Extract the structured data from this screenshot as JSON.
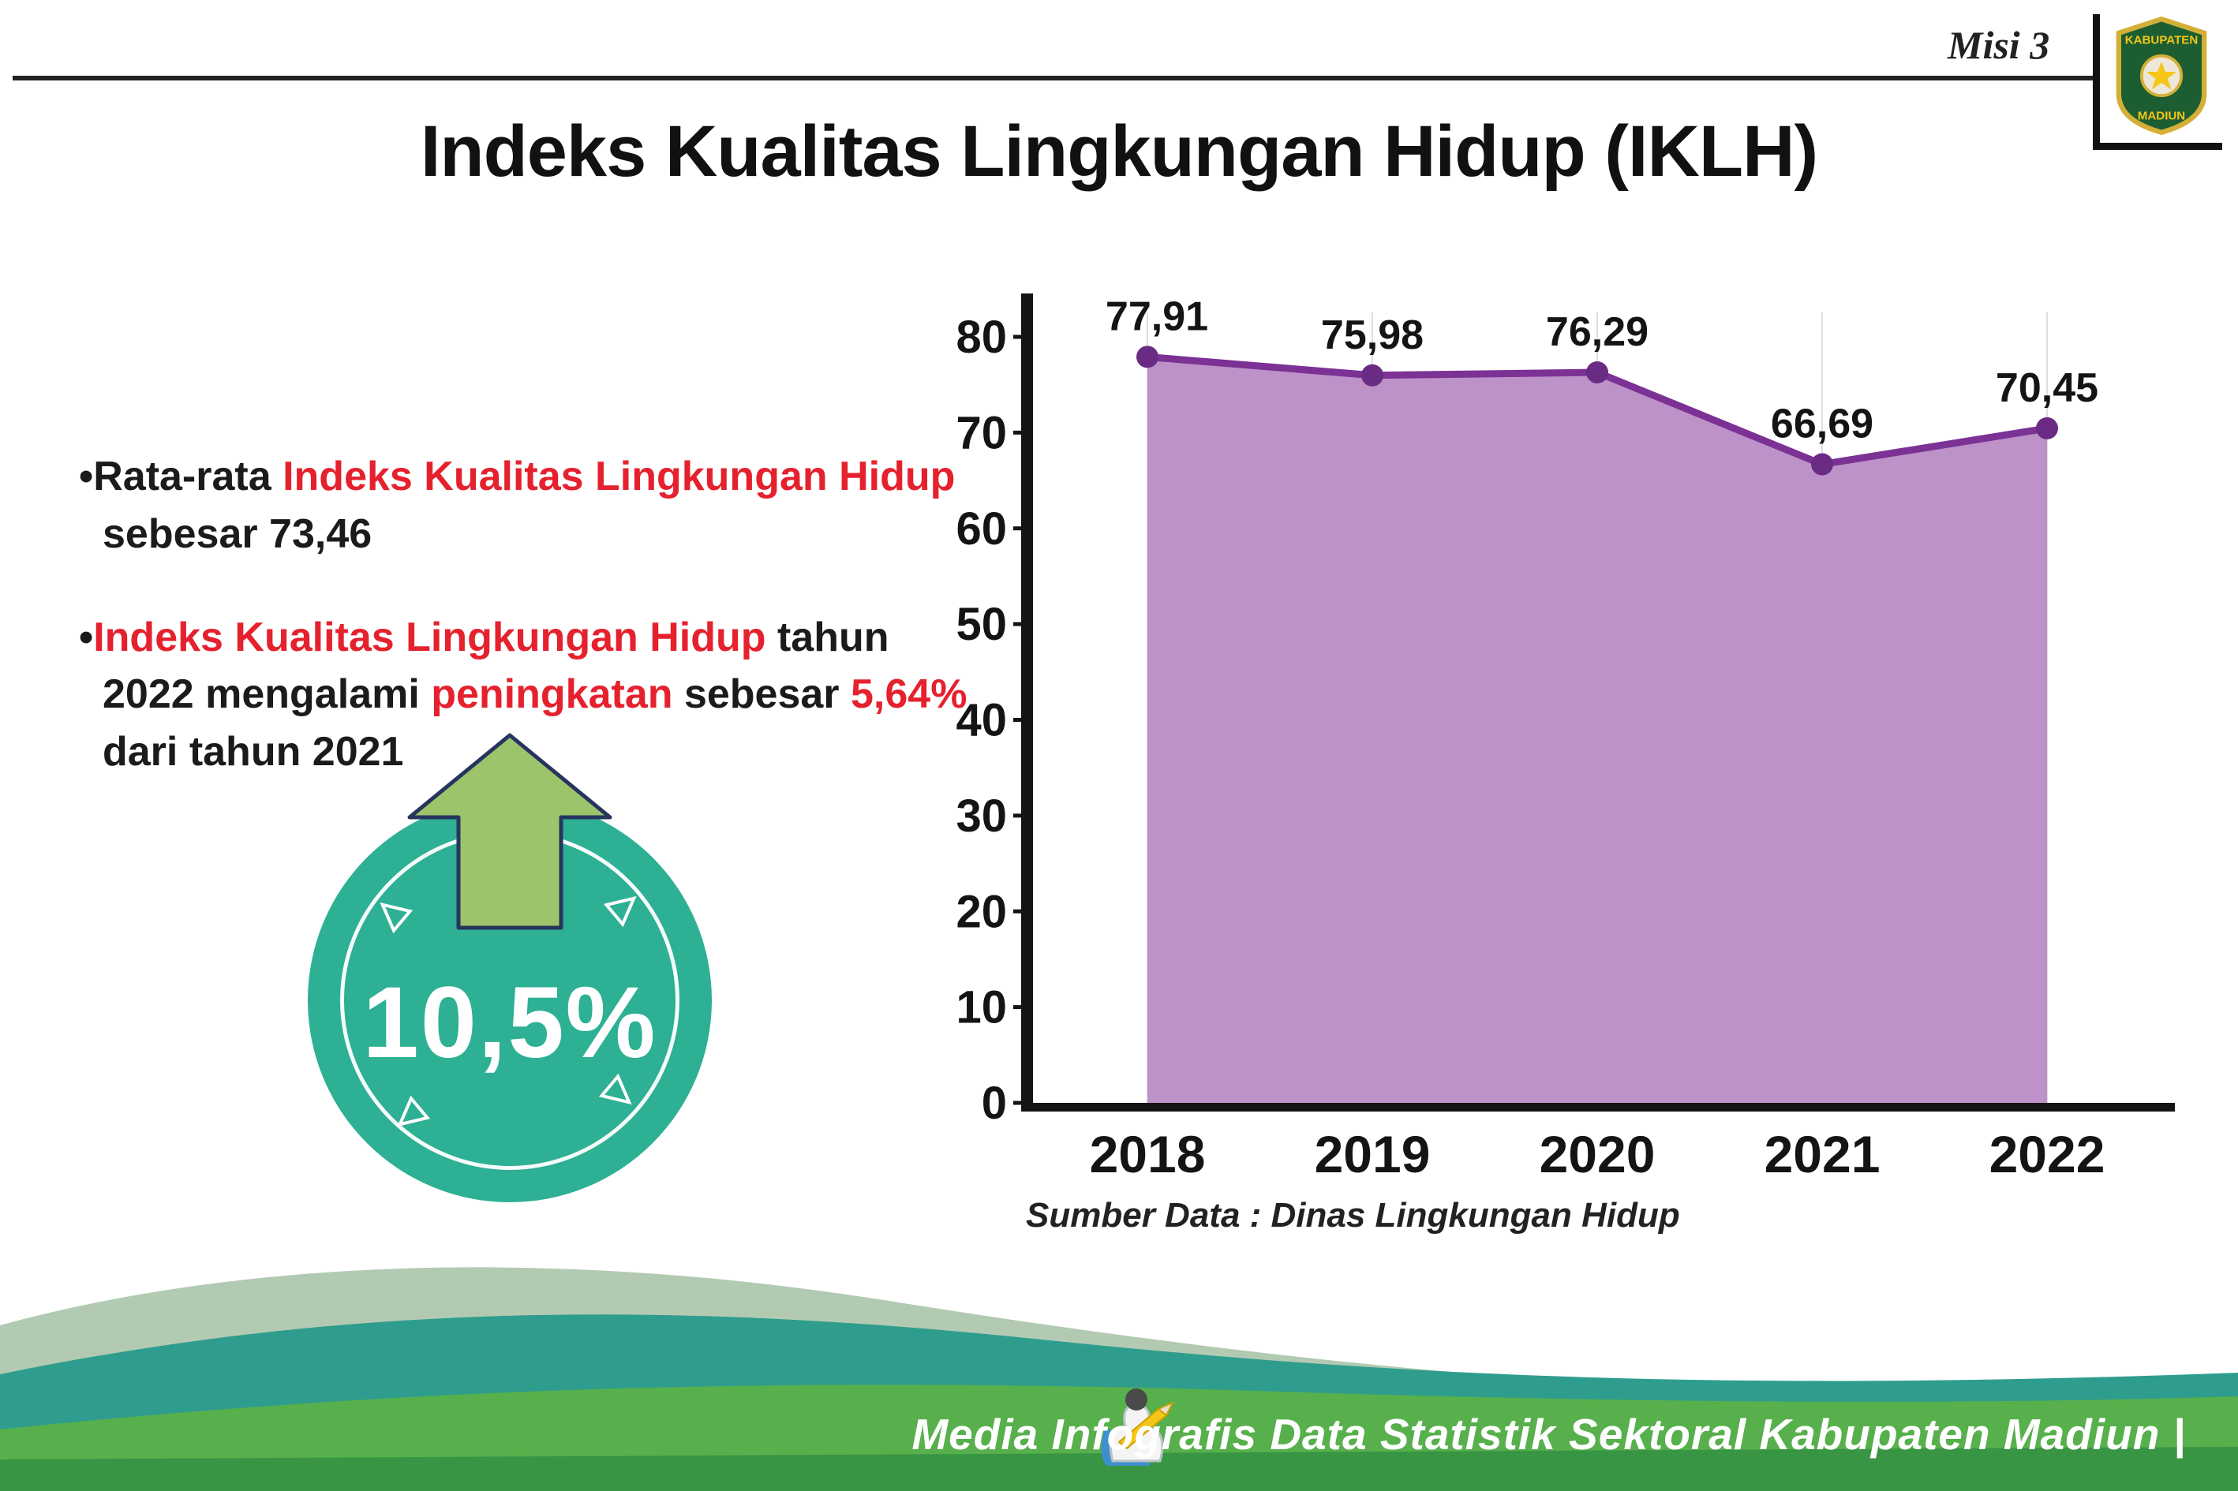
{
  "header": {
    "misi_label": "Misi 3"
  },
  "logo": {
    "top_text": "KABUPATEN",
    "bottom_text": "MADIUN"
  },
  "title": "Indeks Kualitas Lingkungan Hidup (IKLH)",
  "bullets": {
    "marker": "•",
    "b1s1": "Rata-rata ",
    "b1s2": "Indeks Kualitas Lingkungan Hidup",
    "b1s3": " sebesar 73,46",
    "b2s1": "Indeks Kualitas Lingkungan Hidup",
    "b2s2": " tahun 2022 mengalami ",
    "b2s3": "peningkatan",
    "b2s4": " sebesar ",
    "b2s5": "5,64%",
    "b2s6": " dari tahun 2021"
  },
  "badge": {
    "value": "10,5%"
  },
  "chart": {
    "source": "Sumber Data : Dinas Lingkungan Hidup"
  },
  "chart_data": {
    "type": "area",
    "title": "Indeks Kualitas Lingkungan Hidup (IKLH)",
    "categories": [
      "2018",
      "2019",
      "2020",
      "2021",
      "2022"
    ],
    "values": [
      77.91,
      75.98,
      76.29,
      66.69,
      70.45
    ],
    "value_labels": [
      "77,91",
      "75,98",
      "76,29",
      "66,69",
      "70,45"
    ],
    "xlabel": "",
    "ylabel": "",
    "ylim": [
      0,
      80
    ],
    "ytick_step": 10,
    "grid": "vertical-light",
    "legend": "none",
    "fill_color": "#bd92c8",
    "line_color": "#7b3294",
    "marker_color": "#6a2b84"
  },
  "footer": {
    "text": "Media Infografis Data Statistik Sektoral Kabupaten Madiun |"
  },
  "colors": {
    "accent_red": "#e5212e",
    "badge_teal": "#2db093",
    "arrow_green": "#9dc46b",
    "footer_sage": "#b3cab2",
    "footer_teal": "#2f9d8d",
    "footer_green": "#57b04c",
    "footer_dark_green": "#379543"
  }
}
